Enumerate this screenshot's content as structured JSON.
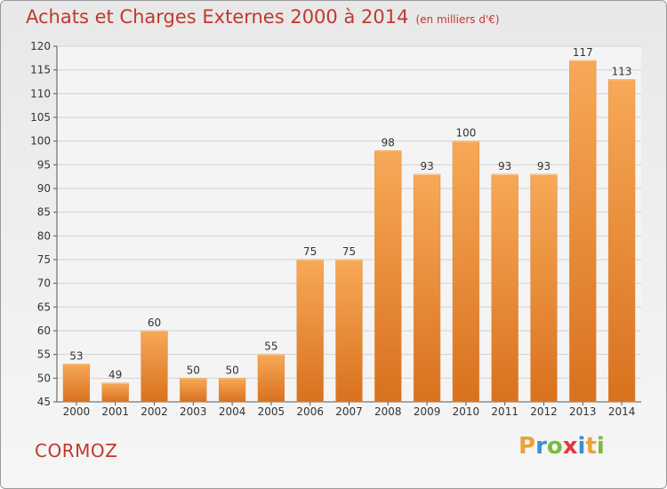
{
  "header": {
    "title": "Achats et Charges Externes 2000 à 2014",
    "unit": "(en milliers d'€)"
  },
  "footer": {
    "commune": "CORMOZ",
    "logo_text": "Proxiti",
    "logo_colors": [
      "#e8a33b",
      "#3a8fd4",
      "#7cbb3a",
      "#e53a3a",
      "#3a8fd4",
      "#e8a33b",
      "#7cbb3a"
    ]
  },
  "colors": {
    "bar_top": "#f7a957",
    "bar_bottom": "#d9711e",
    "title": "#c0392b"
  },
  "chart_data": {
    "type": "bar",
    "title": "Achats et Charges Externes 2000 à 2014",
    "subtitle": "(en milliers d'€)",
    "categories": [
      "2000",
      "2001",
      "2002",
      "2003",
      "2004",
      "2005",
      "2006",
      "2007",
      "2008",
      "2009",
      "2010",
      "2011",
      "2012",
      "2013",
      "2014"
    ],
    "values": [
      53,
      49,
      60,
      50,
      50,
      55,
      75,
      75,
      98,
      93,
      100,
      93,
      93,
      117,
      113
    ],
    "ylim": [
      45,
      120
    ],
    "yticks": [
      45,
      50,
      55,
      60,
      65,
      70,
      75,
      80,
      85,
      90,
      95,
      100,
      105,
      110,
      115,
      120
    ],
    "grid": true,
    "data_labels": true,
    "xlabel": "",
    "ylabel": ""
  }
}
